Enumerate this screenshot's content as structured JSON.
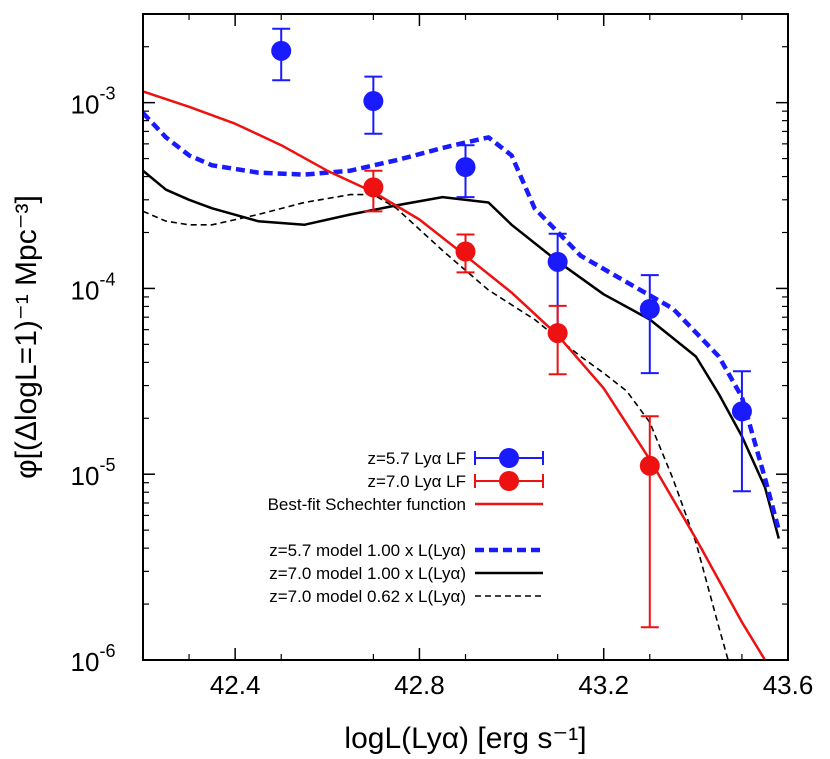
{
  "chart_data": {
    "type": "scatter",
    "xlabel": "logL(Lyα) [erg s⁻¹]",
    "ylabel": "φ[(ΔlogL=1)⁻¹ Mpc⁻³]",
    "xlim": [
      42.2,
      43.6
    ],
    "ylim": [
      1e-06,
      0.003
    ],
    "yscale": "log",
    "x_ticks": [
      42.4,
      42.8,
      43.2,
      43.6
    ],
    "x_tick_labels": [
      "42.4",
      "42.8",
      "43.2",
      "43.6"
    ],
    "y_ticks": [
      0.001,
      0.0001,
      1e-05,
      1e-06
    ],
    "y_tick_labels": [
      {
        "base": "10",
        "exp": "-3"
      },
      {
        "base": "10",
        "exp": "-4"
      },
      {
        "base": "10",
        "exp": "-5"
      },
      {
        "base": "10",
        "exp": "-6"
      }
    ],
    "colors": {
      "blue": "#1a1aff",
      "red": "#ee1111",
      "black": "#000000"
    },
    "points": [
      {
        "name": "z=5.7 Lyα LF",
        "color": "#1a1aff",
        "data": [
          {
            "x": 42.5,
            "y": 0.0019,
            "ylo": 0.00132,
            "yhi": 0.0025
          },
          {
            "x": 42.7,
            "y": 0.00102,
            "ylo": 0.00068,
            "yhi": 0.00138
          },
          {
            "x": 42.9,
            "y": 0.00045,
            "ylo": 0.00031,
            "yhi": 0.00059
          },
          {
            "x": 43.1,
            "y": 0.000139,
            "ylo": 5.7e-05,
            "yhi": 0.000197
          },
          {
            "x": 43.3,
            "y": 7.75e-05,
            "ylo": 3.5e-05,
            "yhi": 0.000118
          },
          {
            "x": 43.5,
            "y": 2.18e-05,
            "ylo": 8.1e-06,
            "yhi": 3.58e-05
          }
        ]
      },
      {
        "name": "z=7.0 Lyα LF",
        "color": "#ee1111",
        "data": [
          {
            "x": 42.7,
            "y": 0.00035,
            "ylo": 0.00026,
            "yhi": 0.00043
          },
          {
            "x": 42.9,
            "y": 0.000158,
            "ylo": 0.000122,
            "yhi": 0.000195
          },
          {
            "x": 43.1,
            "y": 5.75e-05,
            "ylo": 3.45e-05,
            "yhi": 8.05e-05
          },
          {
            "x": 43.3,
            "y": 1.11e-05,
            "ylo": 1.5e-06,
            "yhi": 2.05e-05
          }
        ]
      }
    ],
    "lines": [
      {
        "name": "Best-fit Schechter function",
        "color": "#ee1111",
        "dash": "solid",
        "x": [
          42.2,
          42.3,
          42.4,
          42.5,
          42.6,
          42.7,
          42.8,
          42.9,
          43.0,
          43.1,
          43.2,
          43.3,
          43.4,
          43.5,
          43.55
        ],
        "y": [
          0.00115,
          0.00095,
          0.00077,
          0.00059,
          0.00043,
          0.00033,
          0.000235,
          0.00015,
          9.5e-05,
          5.6e-05,
          2.9e-05,
          1.2e-05,
          4.5e-06,
          1.6e-06,
          1e-06
        ]
      },
      {
        "name": "z=5.7 model 1.00 x L(Lyα)",
        "color": "#1a1aff",
        "dash": "thick-dash",
        "x": [
          42.2,
          42.25,
          42.3,
          42.35,
          42.45,
          42.55,
          42.65,
          42.75,
          42.85,
          42.9,
          42.95,
          43.0,
          43.05,
          43.15,
          43.25,
          43.35,
          43.45,
          43.5,
          43.55,
          43.58
        ],
        "y": [
          0.00088,
          0.00065,
          0.00052,
          0.00046,
          0.00042,
          0.00041,
          0.00043,
          0.00049,
          0.00057,
          0.00061,
          0.00065,
          0.00052,
          0.00027,
          0.00015,
          0.000108,
          7.8e-05,
          4.3e-05,
          2.6e-05,
          9.5e-06,
          5e-06
        ]
      },
      {
        "name": "z=7.0 model 1.00 x L(Lyα)",
        "color": "#000000",
        "dash": "solid",
        "x": [
          42.2,
          42.25,
          42.3,
          42.35,
          42.45,
          42.55,
          42.65,
          42.75,
          42.85,
          42.95,
          43.0,
          43.1,
          43.2,
          43.3,
          43.4,
          43.45,
          43.5,
          43.55,
          43.58
        ],
        "y": [
          0.00043,
          0.00034,
          0.0003,
          0.00027,
          0.00023,
          0.00022,
          0.00025,
          0.00028,
          0.00031,
          0.00029,
          0.00022,
          0.00014,
          9.3e-05,
          6.8e-05,
          4.3e-05,
          2.7e-05,
          1.6e-05,
          8.5e-06,
          4.5e-06
        ]
      },
      {
        "name": "z=7.0 model 0.62 x L(Lyα)",
        "color": "#000000",
        "dash": "thin-dash",
        "x": [
          42.2,
          42.25,
          42.3,
          42.35,
          42.45,
          42.55,
          42.65,
          42.7,
          42.75,
          42.85,
          42.95,
          43.05,
          43.15,
          43.2,
          43.25,
          43.3,
          43.35,
          43.4,
          43.45,
          43.47
        ],
        "y": [
          0.00026,
          0.00023,
          0.00022,
          0.00022,
          0.00025,
          0.00029,
          0.00032,
          0.00032,
          0.00027,
          0.00016,
          9.8e-05,
          6.8e-05,
          4.3e-05,
          3.5e-05,
          2.8e-05,
          1.9e-05,
          9.5e-06,
          4.3e-06,
          1.5e-06,
          1e-06
        ]
      }
    ],
    "legend": {
      "placement": "bottom-center",
      "entries": [
        {
          "label": "z=5.7 Lyα LF",
          "kind": "point",
          "color": "#1a1aff"
        },
        {
          "label": "z=7.0 Lyα LF",
          "kind": "point",
          "color": "#ee1111"
        },
        {
          "label": "Best-fit Schechter function",
          "kind": "line",
          "color": "#ee1111",
          "dash": "solid"
        },
        {
          "label": "z=5.7 model 1.00 x L(Lyα)",
          "kind": "line",
          "color": "#1a1aff",
          "dash": "thick-dash"
        },
        {
          "label": "z=7.0 model 1.00 x L(Lyα)",
          "kind": "line",
          "color": "#000000",
          "dash": "solid"
        },
        {
          "label": "z=7.0 model 0.62 x L(Lyα)",
          "kind": "line",
          "color": "#000000",
          "dash": "thin-dash"
        }
      ]
    }
  }
}
